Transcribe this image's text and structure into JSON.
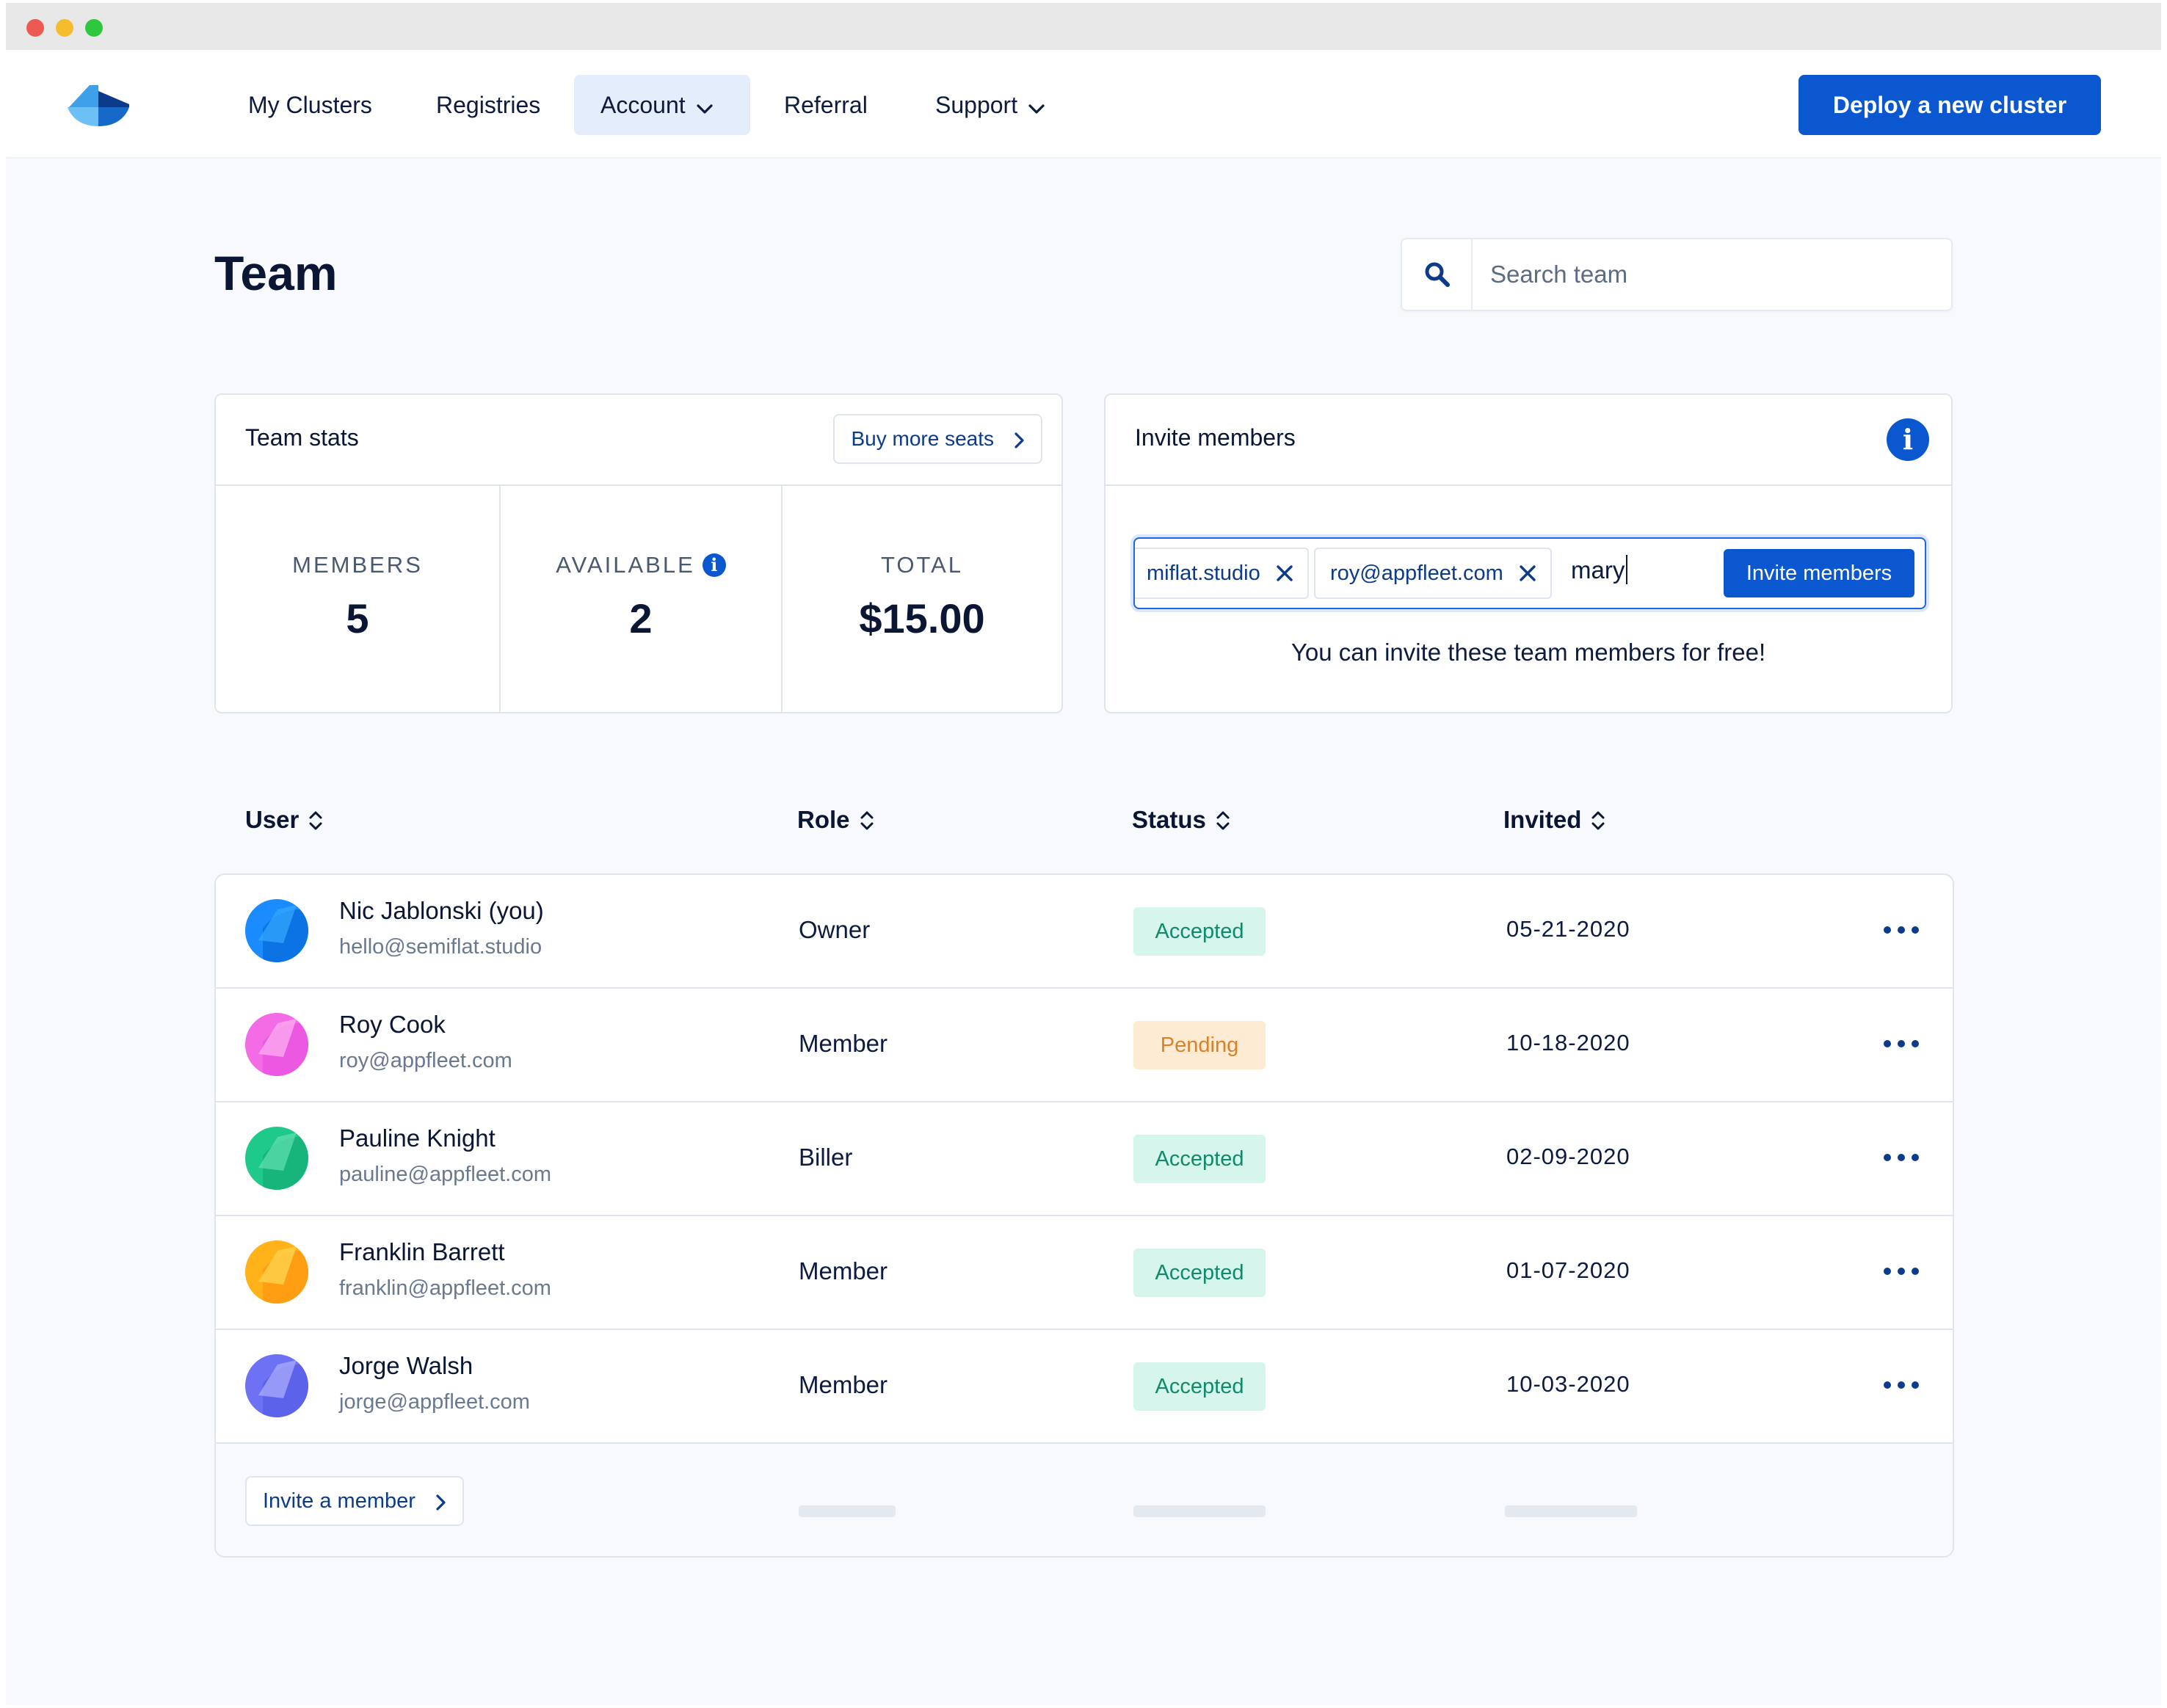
{
  "nav": {
    "items": [
      {
        "label": "My Clusters"
      },
      {
        "label": "Registries"
      },
      {
        "label": "Account"
      },
      {
        "label": "Referral"
      },
      {
        "label": "Support"
      }
    ],
    "active": "Account",
    "deploy_label": "Deploy a new cluster"
  },
  "page": {
    "title": "Team"
  },
  "search": {
    "placeholder": "Search team"
  },
  "team_stats": {
    "title": "Team stats",
    "buy_label": "Buy more seats",
    "members_label": "MEMBERS",
    "members_value": "5",
    "available_label": "AVAILABLE",
    "available_value": "2",
    "total_label": "TOTAL",
    "total_value": "$15.00"
  },
  "invite": {
    "title": "Invite members",
    "chips": [
      "miflat.studio",
      "roy@appfleet.com"
    ],
    "typed_value": "mary",
    "button_label": "Invite members",
    "hint": "You can invite these team members for free!"
  },
  "table": {
    "headers": {
      "user": "User",
      "role": "Role",
      "status": "Status",
      "invited": "Invited"
    },
    "rows": [
      {
        "name": "Nic Jablonski (you)",
        "email": "hello@semiflat.studio",
        "role": "Owner",
        "status": "Accepted",
        "date": "05-21-2020",
        "color": "#1a8cff"
      },
      {
        "name": "Roy Cook",
        "email": "roy@appfleet.com",
        "role": "Member",
        "status": "Pending",
        "date": "10-18-2020",
        "color": "#f46be6"
      },
      {
        "name": "Pauline Knight",
        "email": "pauline@appfleet.com",
        "role": "Biller",
        "status": "Accepted",
        "date": "02-09-2020",
        "color": "#1ec98a"
      },
      {
        "name": "Franklin Barrett",
        "email": "franklin@appfleet.com",
        "role": "Member",
        "status": "Accepted",
        "date": "01-07-2020",
        "color": "#ffb21a"
      },
      {
        "name": "Jorge Walsh",
        "email": "jorge@appfleet.com",
        "role": "Member",
        "status": "Accepted",
        "date": "10-03-2020",
        "color": "#6d72f5"
      }
    ],
    "invite_member_label": "Invite a member"
  },
  "colors": {
    "primary": "#0b57d0",
    "accepted_bg": "#d6f5ec",
    "accepted_text": "#0f8a6a",
    "pending_bg": "#fdebd3",
    "pending_text": "#d9822b"
  }
}
